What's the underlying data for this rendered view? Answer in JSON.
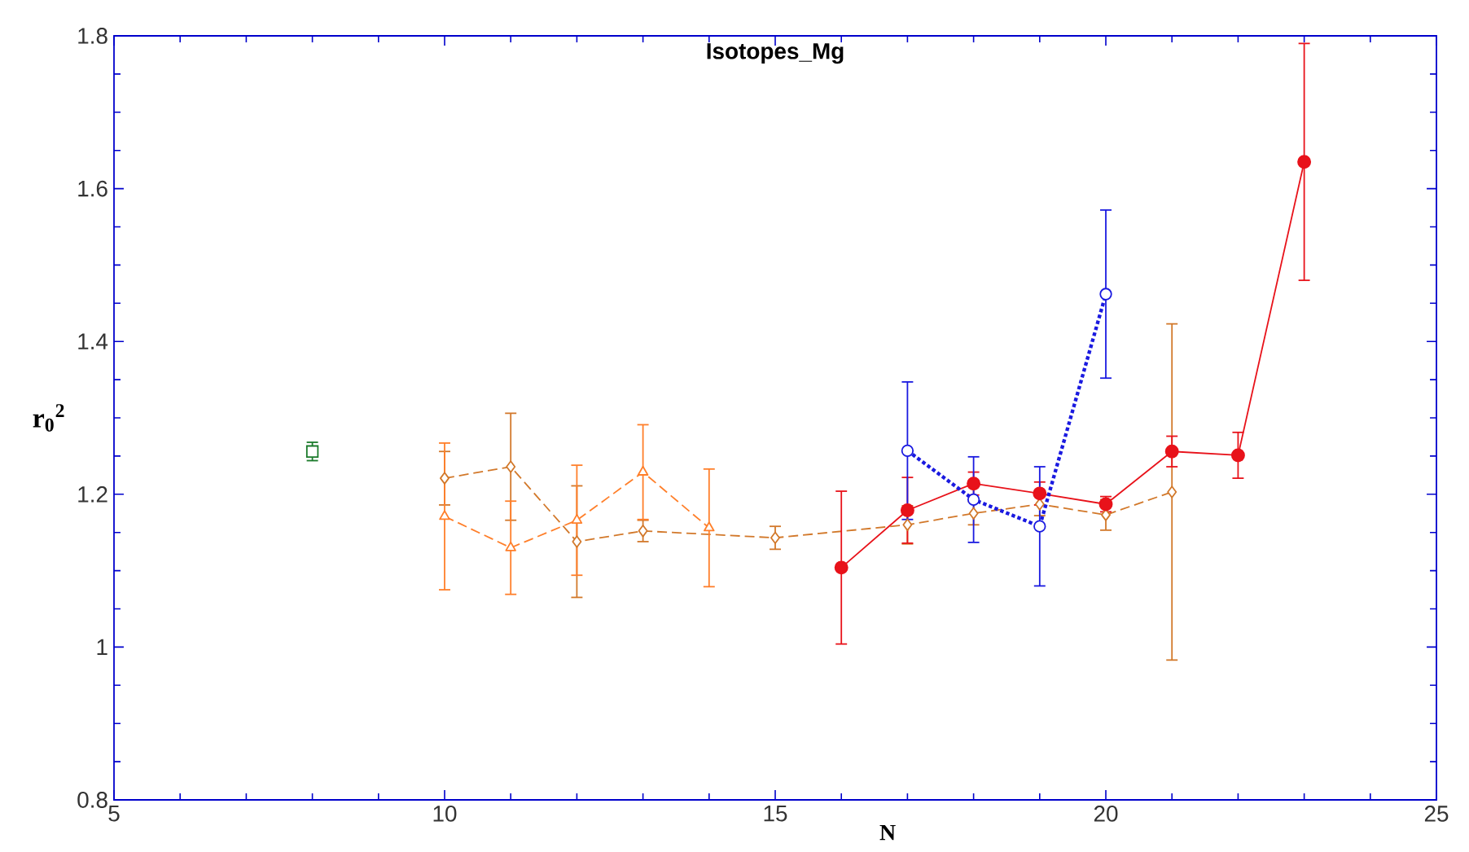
{
  "chart_data": {
    "type": "line",
    "title": "Isotopes_Mg",
    "xlabel": "N",
    "ylabel": "r$_{0}$$^{2}$",
    "xlim": [
      5,
      25
    ],
    "xticks": [
      5,
      10,
      15,
      20,
      25
    ],
    "ylim": [
      0.8,
      1.8
    ],
    "yticks": [
      0.8,
      1,
      1.2,
      1.4,
      1.6,
      1.8
    ],
    "series": [
      {
        "type": "scatter",
        "color": "#1a7a2a",
        "marker": "square",
        "x": [
          8
        ],
        "values": [
          1.256
        ],
        "errors": [
          0.012
        ]
      },
      {
        "color": "#d2782a",
        "marker": "diamond",
        "line_style": "dashed",
        "x": [
          10,
          11,
          12,
          13,
          15,
          17,
          18,
          19,
          20,
          21
        ],
        "values": [
          1.221,
          1.236,
          1.138,
          1.152,
          1.143,
          1.16,
          1.175,
          1.187,
          1.173,
          1.203
        ],
        "errors": [
          0.035,
          0.07,
          0.073,
          0.014,
          0.015,
          0.025,
          0.015,
          0.015,
          0.02,
          0.22
        ]
      },
      {
        "color": "#ff7f2a",
        "marker": "triangle",
        "line_style": "dashed",
        "x": [
          10,
          11,
          12,
          13,
          14
        ],
        "values": [
          1.171,
          1.13,
          1.166,
          1.229,
          1.156
        ],
        "errors": [
          0.096,
          0.061,
          0.072,
          0.062,
          0.077
        ]
      },
      {
        "color": "#e8121a",
        "marker": "circle",
        "line_style": "solid",
        "x": [
          16,
          17,
          18,
          19,
          20,
          21,
          22,
          23
        ],
        "values": [
          1.104,
          1.179,
          1.214,
          1.201,
          1.187,
          1.256,
          1.251,
          1.635
        ],
        "errors": [
          0.1,
          0.043,
          0.015,
          0.015,
          0.01,
          0.02,
          0.03,
          0.155
        ]
      },
      {
        "color": "#1a1ae0",
        "marker": "circle",
        "line_style": "dotted",
        "x": [
          17,
          18,
          19,
          20
        ],
        "values": [
          1.257,
          1.193,
          1.158,
          1.462
        ],
        "errors": [
          0.09,
          0.056,
          0.078,
          0.11
        ]
      }
    ]
  }
}
